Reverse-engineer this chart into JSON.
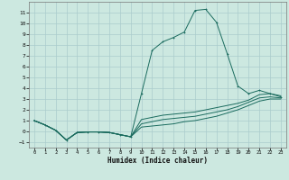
{
  "bg_color": "#cce8e0",
  "grid_color": "#aacccc",
  "line_color": "#1a6b5e",
  "xlabel": "Humidex (Indice chaleur)",
  "xlim": [
    -0.5,
    23.5
  ],
  "ylim": [
    -1.5,
    12.0
  ],
  "yticks": [
    -1,
    0,
    1,
    2,
    3,
    4,
    5,
    6,
    7,
    8,
    9,
    10,
    11
  ],
  "xticks": [
    0,
    1,
    2,
    3,
    4,
    5,
    6,
    7,
    8,
    9,
    10,
    11,
    12,
    13,
    14,
    15,
    16,
    17,
    18,
    19,
    20,
    21,
    22,
    23
  ],
  "line1_x": [
    0,
    1,
    2,
    3,
    4,
    5,
    6,
    7,
    8,
    9,
    10,
    11,
    12,
    13,
    14,
    15,
    16,
    17,
    18,
    19,
    20,
    21,
    22,
    23
  ],
  "line1_y": [
    1.0,
    0.6,
    0.1,
    -0.8,
    -0.1,
    -0.05,
    -0.05,
    -0.1,
    -0.3,
    -0.5,
    3.5,
    7.5,
    8.3,
    8.7,
    9.2,
    11.2,
    11.3,
    10.1,
    7.2,
    4.2,
    3.5,
    3.8,
    3.5,
    3.2
  ],
  "line2_x": [
    0,
    1,
    2,
    3,
    4,
    5,
    6,
    7,
    8,
    9,
    10,
    11,
    12,
    13,
    14,
    15,
    16,
    17,
    18,
    19,
    20,
    21,
    22,
    23
  ],
  "line2_y": [
    1.0,
    0.6,
    0.1,
    -0.8,
    -0.1,
    -0.05,
    -0.05,
    -0.1,
    -0.3,
    -0.5,
    1.1,
    1.3,
    1.5,
    1.6,
    1.7,
    1.8,
    2.0,
    2.2,
    2.4,
    2.6,
    2.9,
    3.4,
    3.5,
    3.3
  ],
  "line3_x": [
    0,
    1,
    2,
    3,
    4,
    5,
    6,
    7,
    8,
    9,
    10,
    11,
    12,
    13,
    14,
    15,
    16,
    17,
    18,
    19,
    20,
    21,
    22,
    23
  ],
  "line3_y": [
    1.0,
    0.6,
    0.1,
    -0.8,
    -0.1,
    -0.05,
    -0.05,
    -0.1,
    -0.3,
    -0.5,
    0.7,
    0.9,
    1.1,
    1.2,
    1.3,
    1.4,
    1.6,
    1.8,
    2.0,
    2.3,
    2.7,
    3.1,
    3.2,
    3.1
  ],
  "line4_x": [
    0,
    1,
    2,
    3,
    4,
    5,
    6,
    7,
    8,
    9,
    10,
    11,
    12,
    13,
    14,
    15,
    16,
    17,
    18,
    19,
    20,
    21,
    22,
    23
  ],
  "line4_y": [
    1.0,
    0.6,
    0.1,
    -0.8,
    -0.1,
    -0.05,
    -0.05,
    -0.1,
    -0.3,
    -0.5,
    0.4,
    0.5,
    0.6,
    0.7,
    0.9,
    1.0,
    1.2,
    1.4,
    1.7,
    2.0,
    2.4,
    2.8,
    3.0,
    3.0
  ]
}
